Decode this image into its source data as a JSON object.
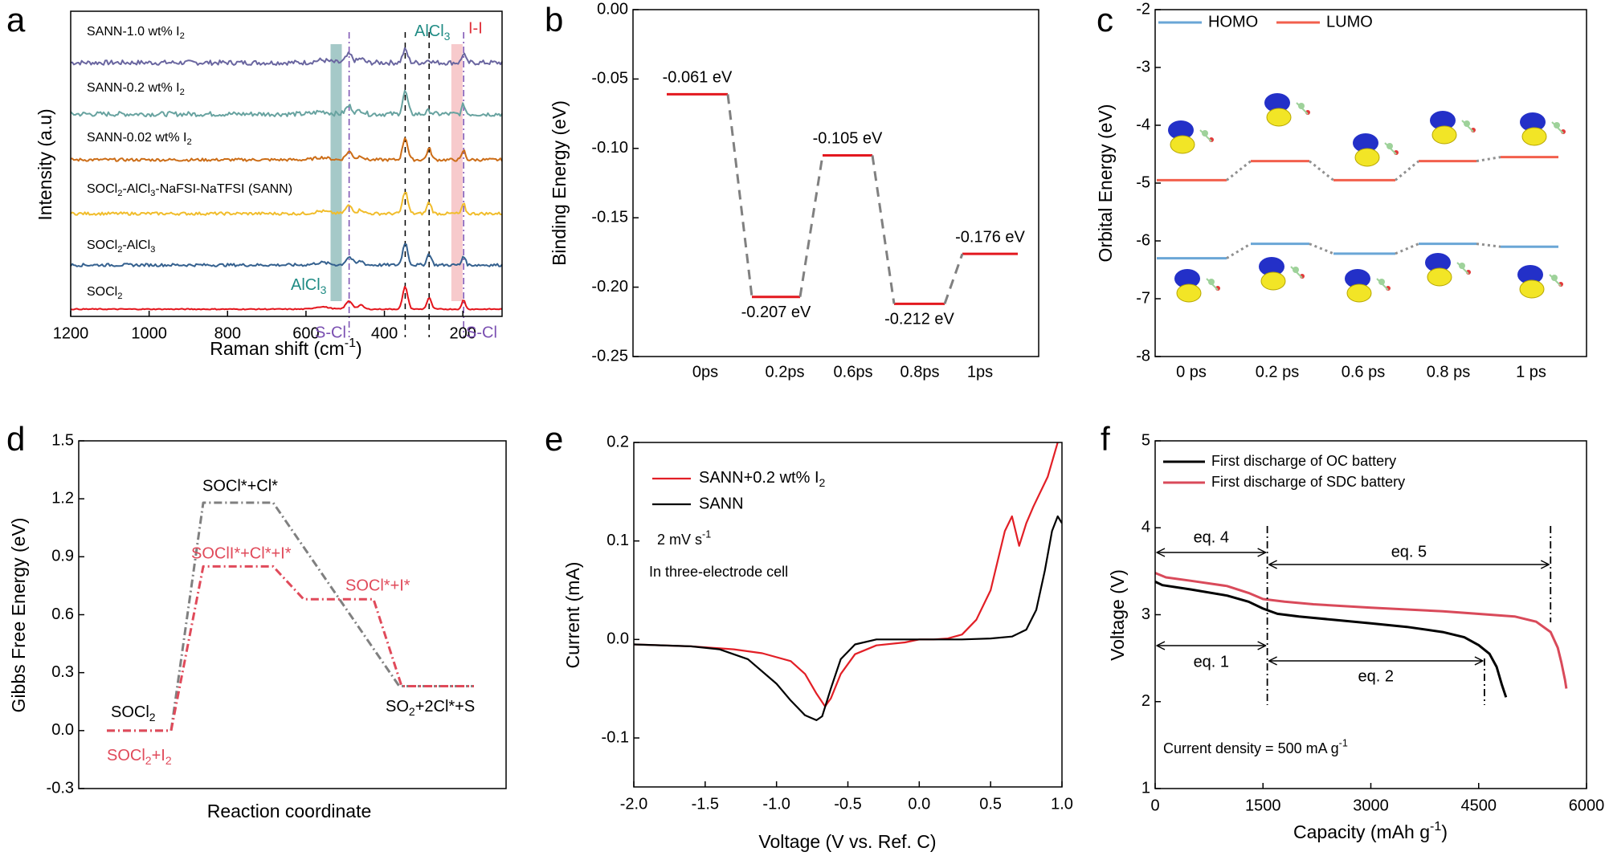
{
  "chart_data": [
    {
      "panel": "a",
      "type": "line",
      "xlabel": "Raman shift (cm-1)",
      "ylabel": "Intensity (a.u)",
      "xlim": [
        1200,
        100
      ],
      "xticks": [
        1200,
        1000,
        800,
        600,
        400,
        200
      ],
      "series": [
        {
          "name": "SANN-1.0 wt% I2",
          "color": "#6a66a0",
          "offset": 5
        },
        {
          "name": "SANN-0.2 wt% I2",
          "color": "#68a3a0",
          "offset": 4
        },
        {
          "name": "SANN-0.02 wt% I2",
          "color": "#cc6d17",
          "offset": 3
        },
        {
          "name": "SOCl2-AlCl3-NaFSI-NaTFSI (SANN)",
          "color": "#f1bd2c",
          "offset": 2
        },
        {
          "name": "SOCl2-AlCl3",
          "color": "#35618f",
          "offset": 1
        },
        {
          "name": "SOCl2",
          "color": "#e4151c",
          "offset": 0
        }
      ],
      "peaks": [
        {
          "position": 490,
          "label": "S-Cl",
          "line": "dashdot",
          "color": "#7a4fb1"
        },
        {
          "position": 347,
          "label": "",
          "line": "dashed",
          "color": "#000000"
        },
        {
          "position": 286,
          "label": "",
          "line": "dashed",
          "color": "#000000"
        },
        {
          "position": 198,
          "label": "S-Cl",
          "line": "dashdot",
          "color": "#7a4fb1"
        }
      ],
      "bands": [
        {
          "center": 523,
          "label": "AlCl3",
          "color": "#7fb2b0"
        },
        {
          "center": 215,
          "label": "I-I",
          "color": "#f4b3b6"
        }
      ],
      "annotations": [
        "AlCl3",
        "I-I",
        "AlCl3",
        "S-Cl",
        "S-Cl"
      ]
    },
    {
      "panel": "b",
      "type": "line",
      "ylabel": "Binding Energy (eV)",
      "ylim": [
        -0.25,
        0.0
      ],
      "yticks": [
        "0.00",
        "-0.05",
        "-0.10",
        "-0.15",
        "-0.20",
        "-0.25"
      ],
      "categories": [
        "0ps",
        "0.2ps",
        "0.6ps",
        "0.8ps",
        "1ps"
      ],
      "values": [
        -0.061,
        -0.207,
        -0.105,
        -0.212,
        -0.176
      ],
      "labels": [
        "-0.061 eV",
        "-0.207 eV",
        "-0.105 eV",
        "-0.212 eV",
        "-0.176 eV"
      ]
    },
    {
      "panel": "c",
      "type": "line",
      "ylabel": "Orbital Energy (eV)",
      "ylim": [
        -8,
        -2
      ],
      "yticks": [
        "-2",
        "-3",
        "-4",
        "-5",
        "-6",
        "-7",
        "-8"
      ],
      "categories": [
        "0 ps",
        "0.2 ps",
        "0.6 ps",
        "0.8 ps",
        "1 ps"
      ],
      "series": [
        {
          "name": "HOMO",
          "color": "#6aa6d6",
          "values": [
            -6.3,
            -6.05,
            -6.22,
            -6.05,
            -6.1
          ]
        },
        {
          "name": "LUMO",
          "color": "#f25f4c",
          "values": [
            -4.95,
            -4.62,
            -4.95,
            -4.62,
            -4.55
          ]
        }
      ]
    },
    {
      "panel": "d",
      "type": "line",
      "xlabel": "Reaction coordinate",
      "ylabel": "Gibbs Free Energy (eV)",
      "ylim": [
        -0.3,
        1.5
      ],
      "yticks": [
        "-0.3",
        "0.0",
        "0.3",
        "0.6",
        "0.9",
        "1.2",
        "1.5"
      ],
      "series": [
        {
          "name": "SOCl2",
          "color": "#808080",
          "steps": [
            0.0,
            1.18,
            0.23
          ]
        },
        {
          "name": "SOCl2+I2",
          "color": "#e04a5a",
          "steps": [
            0.0,
            0.85,
            0.68,
            0.23
          ]
        }
      ],
      "annotations": [
        "SOCl2",
        "SOCl*+Cl*",
        "SOClI*+Cl*+I*",
        "SOCl*+I*",
        "SO2+2Cl*+S",
        "SOCl2+I2"
      ]
    },
    {
      "panel": "e",
      "type": "line",
      "xlabel": "Voltage (V vs. Ref. C)",
      "ylabel": "Current (mA)",
      "xlim": [
        -2.0,
        1.0
      ],
      "ylim": [
        -0.13,
        0.2
      ],
      "xticks": [
        "-2.0",
        "-1.5",
        "-1.0",
        "-0.5",
        "0.0",
        "0.5",
        "1.0"
      ],
      "yticks": [
        "-0.1",
        "0.0",
        "0.1",
        "0.2"
      ],
      "series": [
        {
          "name": "SANN+0.2 wt% I2",
          "color": "#e21f26",
          "x": [
            -2.0,
            -1.6,
            -1.3,
            -1.1,
            -0.9,
            -0.8,
            -0.72,
            -0.66,
            -0.62,
            -0.55,
            -0.45,
            -0.3,
            -0.1,
            0.0,
            0.1,
            0.2,
            0.3,
            0.4,
            0.5,
            0.6,
            0.65,
            0.7,
            0.75,
            0.8,
            0.9,
            0.97
          ],
          "y": [
            -0.005,
            -0.007,
            -0.01,
            -0.014,
            -0.022,
            -0.035,
            -0.055,
            -0.068,
            -0.06,
            -0.035,
            -0.015,
            -0.006,
            -0.003,
            0.0,
            0.0,
            0.001,
            0.005,
            0.02,
            0.05,
            0.11,
            0.125,
            0.095,
            0.118,
            0.135,
            0.165,
            0.2
          ]
        },
        {
          "name": "SANN",
          "color": "#000000",
          "x": [
            -2.0,
            -1.6,
            -1.4,
            -1.2,
            -1.0,
            -0.9,
            -0.8,
            -0.72,
            -0.68,
            -0.62,
            -0.55,
            -0.45,
            -0.3,
            0.0,
            0.3,
            0.5,
            0.65,
            0.75,
            0.82,
            0.88,
            0.93,
            0.97,
            1.0
          ],
          "y": [
            -0.005,
            -0.007,
            -0.01,
            -0.02,
            -0.045,
            -0.062,
            -0.077,
            -0.082,
            -0.078,
            -0.05,
            -0.02,
            -0.005,
            0.0,
            0.0,
            0.0,
            0.001,
            0.003,
            0.01,
            0.03,
            0.07,
            0.11,
            0.125,
            0.118
          ]
        }
      ],
      "annotations": [
        "2 mV s-1",
        "In three-electrode cell"
      ]
    },
    {
      "panel": "f",
      "type": "line",
      "xlabel": "Capacity (mAh g-1)",
      "ylabel": "Voltage (V)",
      "xlim": [
        0,
        6000
      ],
      "ylim": [
        1,
        5
      ],
      "xticks": [
        "0",
        "1500",
        "3000",
        "4500",
        "6000"
      ],
      "yticks": [
        "1",
        "2",
        "3",
        "4",
        "5"
      ],
      "series": [
        {
          "name": "First discharge of OC battery",
          "color": "#000000",
          "x": [
            0,
            100,
            500,
            1000,
            1300,
            1500,
            1700,
            2000,
            2500,
            3000,
            3500,
            4000,
            4300,
            4500,
            4650,
            4750,
            4820,
            4880
          ],
          "y": [
            3.38,
            3.34,
            3.29,
            3.22,
            3.15,
            3.07,
            3.01,
            2.98,
            2.94,
            2.9,
            2.86,
            2.8,
            2.74,
            2.65,
            2.55,
            2.4,
            2.2,
            2.05
          ]
        },
        {
          "name": "First discharge of SDC battery",
          "color": "#d94a5a",
          "x": [
            0,
            150,
            500,
            1000,
            1300,
            1500,
            1800,
            2200,
            3000,
            4000,
            5000,
            5300,
            5500,
            5600,
            5650,
            5700,
            5720
          ],
          "y": [
            3.48,
            3.43,
            3.39,
            3.33,
            3.25,
            3.18,
            3.15,
            3.12,
            3.08,
            3.04,
            2.98,
            2.92,
            2.8,
            2.62,
            2.45,
            2.25,
            2.15
          ]
        }
      ],
      "annotations": [
        "eq. 4",
        "eq. 5",
        "eq. 1",
        "eq. 2",
        "Current density = 500 mA g-1"
      ]
    }
  ],
  "panel_letters": [
    "a",
    "b",
    "c",
    "d",
    "e",
    "f"
  ]
}
